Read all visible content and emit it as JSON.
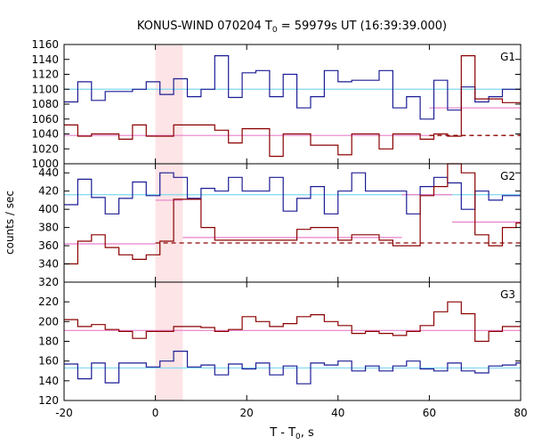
{
  "chart_data": {
    "type": "line",
    "title": "KONUS-WIND 070204 T",
    "title_sub": "0",
    "title_rest": " = 59979s UT (16:39:39.000)",
    "xlabel": "T - T",
    "xlabel_sub": "0",
    "xlabel_rest": ", s",
    "ylabel": "counts / sec",
    "xlim": [
      -20,
      80
    ],
    "xticks": [
      -20,
      0,
      20,
      40,
      60,
      80
    ],
    "highlight_interval": [
      0,
      6
    ],
    "highlight_color": "#fde4e6",
    "colors": {
      "blue": "#1c1c96",
      "red": "#8b0000",
      "cyan": "#7fd8f0",
      "pink": "#e880cc"
    },
    "panels": [
      {
        "name": "G1",
        "ylim": [
          1000,
          1160
        ],
        "yticks": [
          1000,
          1020,
          1040,
          1060,
          1080,
          1100,
          1120,
          1140,
          1160
        ],
        "x_edges": [
          -20,
          -17,
          -14,
          -11,
          -8,
          -5,
          -2,
          1,
          4,
          7,
          10,
          13,
          16,
          19,
          22,
          25,
          28,
          31,
          34,
          37,
          40,
          43,
          46,
          49,
          52,
          55,
          58,
          61,
          64,
          67,
          70,
          73,
          76,
          79,
          80
        ],
        "series": [
          {
            "color": "blue",
            "values": [
              1083,
              1110,
              1085,
              1097,
              1097,
              1100,
              1110,
              1093,
              1114,
              1090,
              1100,
              1145,
              1089,
              1122,
              1125,
              1090,
              1120,
              1075,
              1090,
              1125,
              1110,
              1112,
              1112,
              1125,
              1075,
              1090,
              1060,
              1112,
              1072,
              1103,
              1083,
              1090,
              1100,
              1100
            ]
          },
          {
            "color": "red",
            "values": [
              1052,
              1037,
              1040,
              1040,
              1033,
              1052,
              1037,
              1037,
              1052,
              1052,
              1052,
              1045,
              1028,
              1047,
              1047,
              1010,
              1040,
              1040,
              1025,
              1025,
              1012,
              1040,
              1040,
              1020,
              1040,
              1040,
              1033,
              1040,
              1037,
              1145,
              1087,
              1087,
              1082,
              1082
            ]
          }
        ],
        "ref_lines": [
          {
            "color": "cyan",
            "y": 1100,
            "x_from": -20,
            "x_to": 80,
            "dashed": false
          },
          {
            "color": "pink",
            "y": 1038,
            "x_from": -20,
            "x_to": 60,
            "dashed": false
          },
          {
            "color": "pink",
            "y": 1075,
            "x_from": 60,
            "x_to": 80,
            "dashed": false
          },
          {
            "color": "red",
            "y": 1038,
            "x_from": 60,
            "x_to": 80,
            "dashed": true
          }
        ]
      },
      {
        "name": "G2",
        "ylim": [
          320,
          450
        ],
        "yticks": [
          320,
          340,
          360,
          380,
          400,
          420,
          440
        ],
        "x_edges": [
          -20,
          -17,
          -14,
          -11,
          -8,
          -5,
          -2,
          1,
          4,
          7,
          10,
          13,
          16,
          19,
          22,
          25,
          28,
          31,
          34,
          37,
          40,
          43,
          46,
          49,
          52,
          55,
          58,
          61,
          64,
          67,
          70,
          73,
          76,
          79,
          80
        ],
        "series": [
          {
            "color": "blue",
            "values": [
              405,
              433,
              413,
              395,
              412,
              430,
              415,
              440,
              435,
              412,
              423,
              420,
              435,
              420,
              420,
              435,
              398,
              412,
              425,
              395,
              420,
              440,
              420,
              420,
              420,
              395,
              425,
              435,
              429,
              400,
              420,
              410,
              415,
              415
            ]
          },
          {
            "color": "red",
            "values": [
              340,
              365,
              372,
              358,
              350,
              345,
              350,
              365,
              411,
              411,
              380,
              366,
              366,
              366,
              366,
              366,
              366,
              378,
              380,
              380,
              366,
              372,
              372,
              366,
              360,
              360,
              415,
              425,
              450,
              440,
              372,
              360,
              380,
              385
            ]
          }
        ],
        "ref_lines": [
          {
            "color": "cyan",
            "y": 416,
            "x_from": -20,
            "x_to": 80,
            "dashed": false
          },
          {
            "color": "pink",
            "y": 362,
            "x_from": -20,
            "x_to": 0,
            "dashed": false
          },
          {
            "color": "pink",
            "y": 410,
            "x_from": 0,
            "x_to": 6,
            "dashed": false
          },
          {
            "color": "pink",
            "y": 369,
            "x_from": 6,
            "x_to": 54,
            "dashed": false
          },
          {
            "color": "pink",
            "y": 416,
            "x_from": 54,
            "x_to": 65,
            "dashed": false
          },
          {
            "color": "pink",
            "y": 386,
            "x_from": 65,
            "x_to": 80,
            "dashed": false
          },
          {
            "color": "red",
            "y": 363,
            "x_from": 0,
            "x_to": 80,
            "dashed": true
          }
        ]
      },
      {
        "name": "G3",
        "ylim": [
          120,
          240
        ],
        "yticks": [
          120,
          140,
          160,
          180,
          200,
          220
        ],
        "x_edges": [
          -20,
          -17,
          -14,
          -11,
          -8,
          -5,
          -2,
          1,
          4,
          7,
          10,
          13,
          16,
          19,
          22,
          25,
          28,
          31,
          34,
          37,
          40,
          43,
          46,
          49,
          52,
          55,
          58,
          61,
          64,
          67,
          70,
          73,
          76,
          79,
          80
        ],
        "series": [
          {
            "color": "blue",
            "values": [
              157,
              142,
              158,
              138,
              158,
              158,
              154,
              160,
              170,
              154,
              156,
              146,
              157,
              152,
              158,
              146,
              155,
              137,
              158,
              156,
              160,
              150,
              155,
              150,
              155,
              160,
              152,
              150,
              158,
              150,
              148,
              155,
              156,
              158
            ]
          },
          {
            "color": "red",
            "values": [
              202,
              195,
              197,
              192,
              190,
              183,
              190,
              190,
              195,
              195,
              194,
              190,
              192,
              205,
              200,
              195,
              198,
              205,
              207,
              200,
              196,
              188,
              190,
              188,
              186,
              190,
              196,
              210,
              220,
              208,
              180,
              190,
              195,
              195
            ]
          }
        ],
        "ref_lines": [
          {
            "color": "cyan",
            "y": 153,
            "x_from": -20,
            "x_to": 80,
            "dashed": false
          },
          {
            "color": "pink",
            "y": 191,
            "x_from": -20,
            "x_to": 80,
            "dashed": false
          }
        ]
      }
    ]
  }
}
